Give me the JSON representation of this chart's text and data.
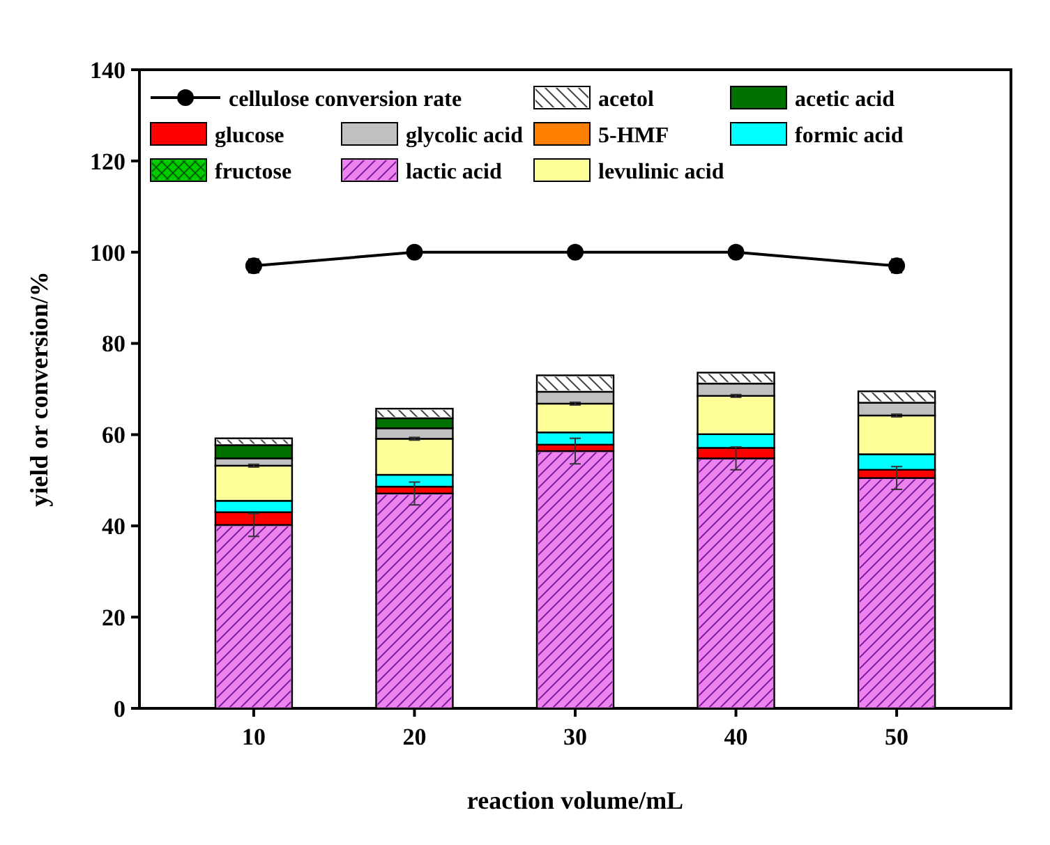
{
  "chart_data": {
    "type": "bar",
    "stacked": true,
    "xlabel": "reaction volume/mL",
    "ylabel": "yield or conversion/%",
    "categories": [
      "10",
      "20",
      "30",
      "40",
      "50"
    ],
    "ylim": [
      0,
      140
    ],
    "yticks": [
      0,
      20,
      40,
      60,
      80,
      100,
      120,
      140
    ],
    "grid": false,
    "legend": "top left",
    "series": [
      {
        "name": "cellulose conversion rate",
        "type": "line",
        "color": "#000000",
        "marker": "circle",
        "line_style": "solid",
        "values": [
          97,
          100,
          100,
          100,
          97
        ],
        "errors": [
          1.5,
          null,
          null,
          null,
          1.5
        ]
      },
      {
        "name": "lactic acid",
        "color": "#ee82ee",
        "values": [
          40.2,
          47.1,
          56.4,
          54.8,
          50.5
        ],
        "errors": [
          2.5,
          2.5,
          2.8,
          2.5,
          2.5
        ]
      },
      {
        "name": "glucose",
        "color": "#ff0000",
        "values": [
          2.8,
          1.5,
          1.4,
          2.3,
          1.8
        ]
      },
      {
        "name": "fructose",
        "color": "#00cc00",
        "values": [
          0,
          0,
          0,
          0,
          0
        ]
      },
      {
        "name": "formic acid",
        "color": "#00ffff",
        "values": [
          2.5,
          2.6,
          2.7,
          3.0,
          3.4
        ]
      },
      {
        "name": "5-HMF",
        "color": "#ff8000",
        "values": [
          0,
          0,
          0,
          0,
          0
        ]
      },
      {
        "name": "levulinic acid",
        "color": "#ffff99",
        "values": [
          7.7,
          7.9,
          6.3,
          8.4,
          8.5
        ],
        "errors": [
          0.3,
          0.3,
          0.3,
          0.3,
          0.3
        ]
      },
      {
        "name": "glycolic acid",
        "color": "#c0c0c0",
        "values": [
          1.6,
          2.3,
          2.6,
          2.7,
          2.8
        ]
      },
      {
        "name": "acetic acid",
        "color": "#007000",
        "values": [
          2.9,
          2.2,
          0,
          0,
          0
        ]
      },
      {
        "name": "acetol",
        "color": "#ffffff",
        "values": [
          1.5,
          2.1,
          3.6,
          2.4,
          2.5
        ]
      }
    ]
  }
}
